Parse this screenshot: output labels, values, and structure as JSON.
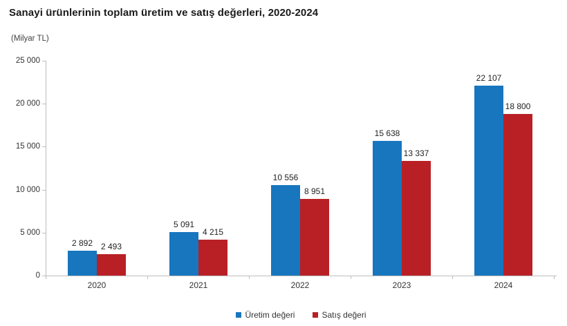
{
  "title": "Sanayi ürünlerinin toplam üretim ve satış değerleri, 2020-2024",
  "unit_label": "(Milyar TL)",
  "colors": {
    "production_blue": "#1876BE",
    "sales_red": "#B82025",
    "axis_gray": "#BDBDBD",
    "text_dark": "#1F1F1F"
  },
  "chart_data": {
    "type": "bar",
    "title": "Sanayi ürünlerinin toplam üretim ve satış değerleri, 2020-2024",
    "ylabel": "(Milyar TL)",
    "categories": [
      "2020",
      "2021",
      "2022",
      "2023",
      "2024"
    ],
    "series": [
      {
        "name": "Üretim değeri",
        "color": "#1876BE",
        "values": [
          2892,
          5091,
          10556,
          15638,
          22107
        ]
      },
      {
        "name": "Satış değeri",
        "color": "#B82025",
        "values": [
          2493,
          4215,
          8951,
          13337,
          18800
        ]
      }
    ],
    "data_labels": [
      "2 892",
      "2 493",
      "5 091",
      "4 215",
      "10 556",
      "8 951",
      "15 638",
      "13 337",
      "22 107",
      "18 800"
    ],
    "ylim": [
      0,
      25000
    ],
    "yticks": [
      0,
      5000,
      10000,
      15000,
      20000,
      25000
    ],
    "ytick_labels": [
      "0",
      "5 000",
      "10 000",
      "15 000",
      "20 000",
      "25 000"
    ],
    "grid": false,
    "legend_position": "bottom"
  }
}
